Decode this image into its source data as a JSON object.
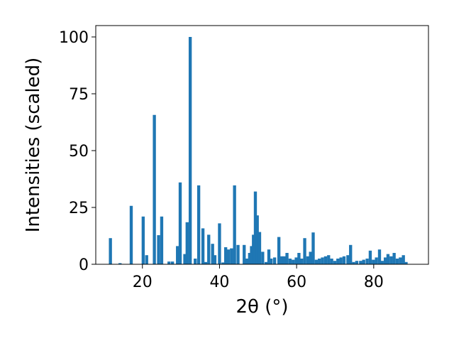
{
  "chart_data": {
    "type": "bar",
    "title": "",
    "xlabel": "2θ (°)",
    "ylabel": "Intensities (scaled)",
    "xlim": [
      7.9,
      94.2
    ],
    "ylim": [
      0,
      105
    ],
    "xticks": [
      20,
      40,
      60,
      80
    ],
    "yticks": [
      0,
      25,
      50,
      75,
      100
    ],
    "grid": false,
    "color": "#1f77b4",
    "bar_width": 0.8,
    "x": [
      11.7,
      14.2,
      17.1,
      20.2,
      21.1,
      23.1,
      24.2,
      25.0,
      26.9,
      27.8,
      29.1,
      29.8,
      31.0,
      31.6,
      32.4,
      33.7,
      34.6,
      35.7,
      36.4,
      37.2,
      38.2,
      38.8,
      40.0,
      40.9,
      41.6,
      42.3,
      43.1,
      43.9,
      44.8,
      46.4,
      47.1,
      47.8,
      48.3,
      48.8,
      49.3,
      49.8,
      50.4,
      51.2,
      52.1,
      52.8,
      53.4,
      54.3,
      55.4,
      56.1,
      56.8,
      57.5,
      58.3,
      59.1,
      59.9,
      60.6,
      61.3,
      62.1,
      62.9,
      63.6,
      64.3,
      65.1,
      65.9,
      66.7,
      67.5,
      68.3,
      69.1,
      69.9,
      70.7,
      71.5,
      72.3,
      73.3,
      74.0,
      74.8,
      75.6,
      76.6,
      77.4,
      78.3,
      79.1,
      79.9,
      80.7,
      81.5,
      82.2,
      83.0,
      83.7,
      84.5,
      85.3,
      86.1,
      86.9,
      87.7,
      88.4,
      89.2,
      90.0
    ],
    "values": [
      11.5,
      0.5,
      25.7,
      21.0,
      4.0,
      65.7,
      12.8,
      21.0,
      1.2,
      1.2,
      8.0,
      36.0,
      4.5,
      18.5,
      100.0,
      2.5,
      34.7,
      15.8,
      1.0,
      13.0,
      9.0,
      4.0,
      18.0,
      0.8,
      7.5,
      6.5,
      7.0,
      34.7,
      8.5,
      8.5,
      2.5,
      5.0,
      8.0,
      13.0,
      32.0,
      21.5,
      14.2,
      5.5,
      1.0,
      6.5,
      2.5,
      3.0,
      12.0,
      3.5,
      3.5,
      5.0,
      2.5,
      2.0,
      3.0,
      5.0,
      2.5,
      11.5,
      3.5,
      5.5,
      14.0,
      2.0,
      2.5,
      3.0,
      3.5,
      4.0,
      2.5,
      1.5,
      2.5,
      3.0,
      3.5,
      4.0,
      8.5,
      1.0,
      1.5,
      1.5,
      2.0,
      2.5,
      6.0,
      2.0,
      3.0,
      6.5,
      1.5,
      3.0,
      4.5,
      3.5,
      5.0,
      2.5,
      3.0,
      4.0,
      1.0,
      0.0,
      0.0
    ]
  }
}
